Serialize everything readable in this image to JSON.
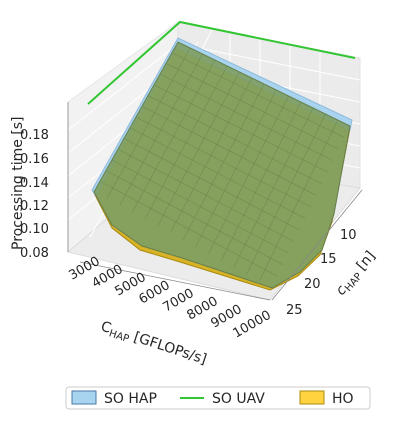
{
  "chart_data": {
    "type": "surface3d",
    "zlabel": "Processing time [s]",
    "xlabel": "C_HAP [GFLOPs/s]",
    "ylabel": "c_HAP [n]",
    "x_ticks": [
      "3000",
      "4000",
      "5000",
      "6000",
      "7000",
      "8000",
      "9000",
      "10000"
    ],
    "y_ticks": [
      "10",
      "15",
      "20",
      "25"
    ],
    "z_ticks": [
      "0.08",
      "0.10",
      "0.12",
      "0.14",
      "0.16",
      "0.18"
    ],
    "xlim": [
      3000,
      10000
    ],
    "ylim": [
      7,
      25
    ],
    "zlim": [
      0.08,
      0.19
    ],
    "grid": true,
    "legend_position": "bottom",
    "series": [
      {
        "name": "SO HAP",
        "color": "#a8d4f0"
      },
      {
        "name": "SO UAV",
        "color": "#33c633"
      },
      {
        "name": "HO",
        "color": "#ffd23f"
      }
    ]
  }
}
